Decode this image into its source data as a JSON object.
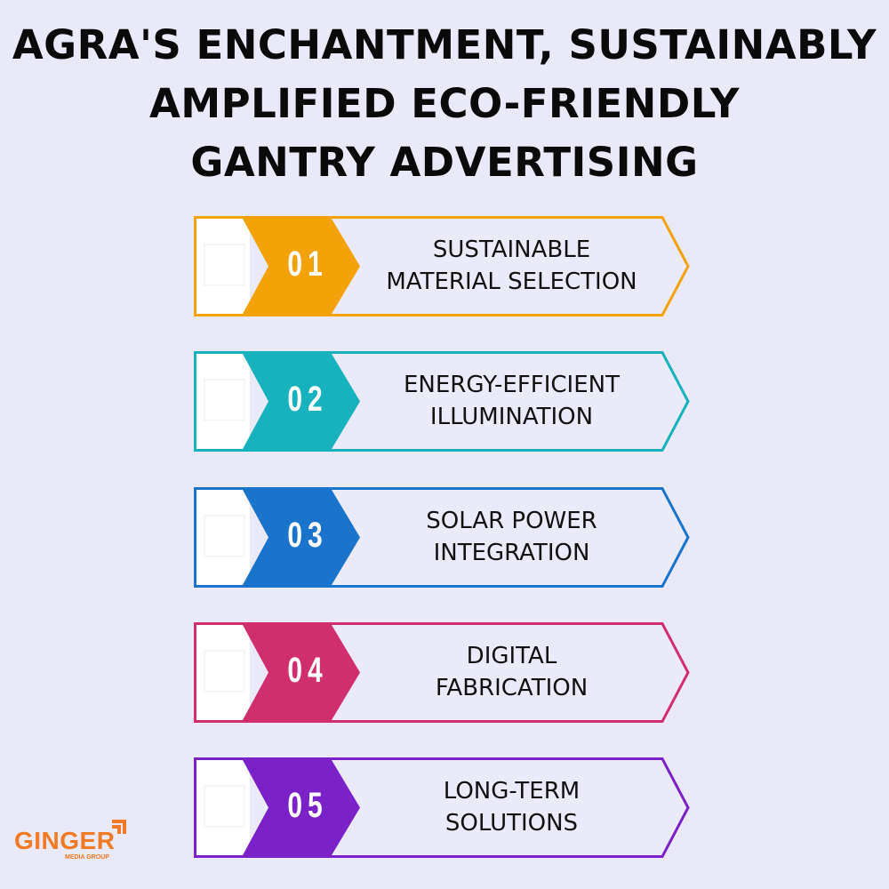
{
  "title": {
    "lines": [
      "AGRA'S ENCHANTMENT, SUSTAINABLY",
      "AMPLIFIED ECO-FRIENDLY",
      "GANTRY ADVERTISING"
    ]
  },
  "items": [
    {
      "number": "01",
      "line1": "SUSTAINABLE",
      "line2": "MATERIAL SELECTION",
      "color": "#f4a20a"
    },
    {
      "number": "02",
      "line1": "ENERGY-EFFICIENT",
      "line2": "ILLUMINATION",
      "color": "#17b2bd"
    },
    {
      "number": "03",
      "line1": "SOLAR POWER",
      "line2": "INTEGRATION",
      "color": "#1a74cb"
    },
    {
      "number": "04",
      "line1": "DIGITAL",
      "line2": "FABRICATION",
      "color": "#d12e6e"
    },
    {
      "number": "05",
      "line1": "LONG-TERM",
      "line2": "SOLUTIONS",
      "color": "#7a22c8"
    }
  ],
  "logo": {
    "brand": "GINGER",
    "subtitle": "MEDIA GROUP",
    "color": "#f07a25"
  }
}
